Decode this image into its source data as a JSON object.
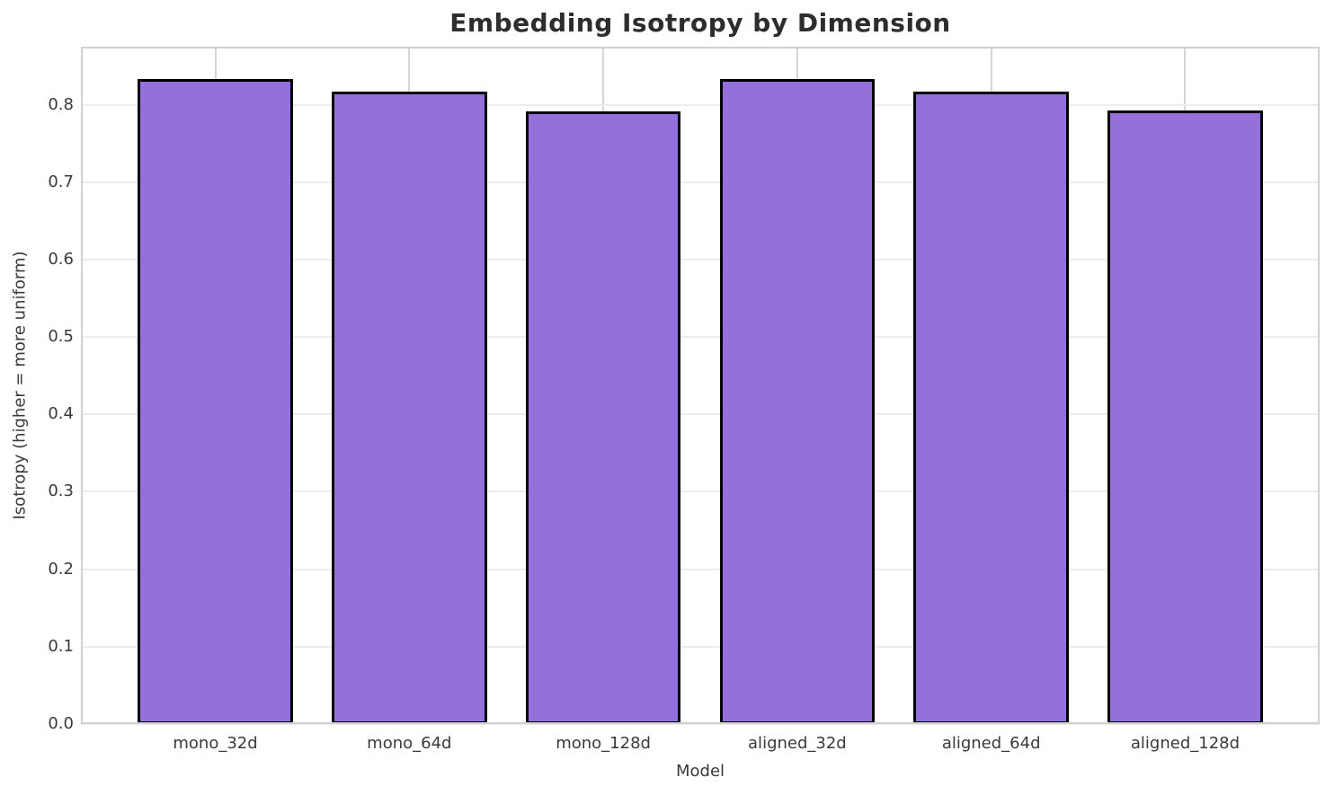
{
  "chart_data": {
    "type": "bar",
    "title": "Embedding Isotropy by Dimension",
    "xlabel": "Model",
    "ylabel": "Isotropy (higher = more uniform)",
    "categories": [
      "mono_32d",
      "mono_64d",
      "mono_128d",
      "aligned_32d",
      "aligned_64d",
      "aligned_128d"
    ],
    "values": [
      0.833,
      0.817,
      0.792,
      0.833,
      0.817,
      0.793
    ],
    "ylim": [
      0,
      0.875
    ],
    "yticks": [
      0.0,
      0.1,
      0.2,
      0.3,
      0.4,
      0.5,
      0.6,
      0.7,
      0.8
    ],
    "ytick_labels": [
      "0.0",
      "0.1",
      "0.2",
      "0.3",
      "0.4",
      "0.5",
      "0.6",
      "0.7",
      "0.8"
    ],
    "bar_color": "#9370DB",
    "bar_edge_color": "#000000",
    "grid": true,
    "grid_axes": "both",
    "legend": null,
    "plot_background": "#ffffff"
  }
}
